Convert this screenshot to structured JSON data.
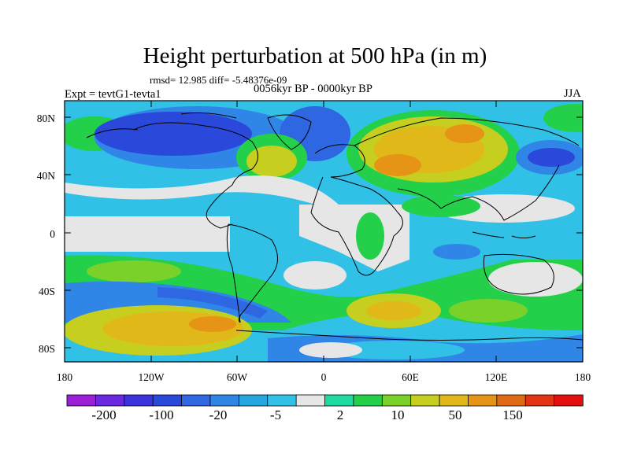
{
  "title": "Height perturbation at 500 hPa (in m)",
  "stats": "rmsd= 12.985 diff= -5.48376e-09",
  "experiment": "Expt = tevtG1-tevta1",
  "period": "0056kyr BP - 0000kyr BP",
  "season": "JJA",
  "map": {
    "projection": "cylindrical-equidistant",
    "lat_ticks": [
      "80N",
      "40N",
      "0",
      "40S",
      "80S"
    ],
    "lon_ticks": [
      "180",
      "120W",
      "60W",
      "0",
      "60E",
      "120E",
      "180"
    ],
    "fill_style": "filled-contours",
    "coastlines": "black"
  },
  "colorbar": {
    "colors": [
      "#9a1fd6",
      "#6a28e0",
      "#3b34dc",
      "#2a48d9",
      "#2f67e2",
      "#2f86e6",
      "#25a6e0",
      "#32c1e6",
      "#e6e6e6",
      "#1ed9a0",
      "#24d04a",
      "#7ad12a",
      "#c6cf1f",
      "#e1b81a",
      "#e69416",
      "#e06a14",
      "#e23313",
      "#e30f0f"
    ],
    "labels": [
      "-200",
      "-100",
      "-20",
      "-5",
      "2",
      "10",
      "50",
      "150"
    ]
  }
}
